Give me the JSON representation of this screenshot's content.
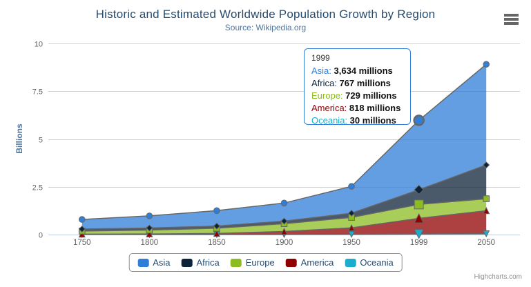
{
  "chart": {
    "title": "Historic and Estimated Worldwide Population Growth by Region",
    "subtitle": "Source: Wikipedia.org",
    "credits": "Highcharts.com"
  },
  "chart_data": {
    "type": "area",
    "stacking": "normal",
    "title": "Historic and Estimated Worldwide Population Growth by Region",
    "subtitle": "Source: Wikipedia.org",
    "categories": [
      "1750",
      "1800",
      "1850",
      "1900",
      "1950",
      "1999",
      "2050"
    ],
    "xlabel": "",
    "ylabel": "Billions",
    "unit": "millions",
    "ylim": [
      0,
      10
    ],
    "yticks": [
      0,
      2.5,
      5,
      7.5,
      10
    ],
    "grid": true,
    "legend_position": "bottom",
    "fill_opacity": 0.75,
    "hover_index": 5,
    "hover_series": "Asia",
    "series": [
      {
        "name": "Asia",
        "color": "#2f7ed8",
        "marker": "circle",
        "values": [
          502,
          635,
          809,
          947,
          1402,
          3634,
          5268
        ]
      },
      {
        "name": "Africa",
        "color": "#0d233a",
        "marker": "diamond",
        "values": [
          106,
          107,
          111,
          133,
          221,
          767,
          1766
        ]
      },
      {
        "name": "Europe",
        "color": "#8bbc21",
        "marker": "square",
        "values": [
          163,
          203,
          276,
          408,
          547,
          729,
          628
        ]
      },
      {
        "name": "America",
        "color": "#910000",
        "marker": "triangle",
        "values": [
          18,
          31,
          54,
          156,
          339,
          818,
          1201
        ]
      },
      {
        "name": "Oceania",
        "color": "#1aadce",
        "marker": "triangle-down",
        "values": [
          2,
          2,
          2,
          6,
          13,
          30,
          46
        ]
      }
    ]
  },
  "tooltip": {
    "header": "1999",
    "rows": [
      {
        "name": "Asia",
        "value": "3,634 millions",
        "color": "#2f7ed8"
      },
      {
        "name": "Africa",
        "value": "767 millions",
        "color": "#0d233a"
      },
      {
        "name": "Europe",
        "value": "729 millions",
        "color": "#8bbc21"
      },
      {
        "name": "America",
        "value": "818 millions",
        "color": "#910000"
      },
      {
        "name": "Oceania",
        "value": "30 millions",
        "color": "#1aadce"
      }
    ]
  },
  "icons": {
    "context_menu": "hamburger-icon"
  },
  "colors": {
    "title": "#274b6d",
    "subtitle": "#4d759e",
    "axis_label": "#606060",
    "axis_title": "#4d759e",
    "grid": "#d0d0d0",
    "axis_line": "#c0d0e0",
    "series_line": "#666666",
    "legend_text": "#274b6d",
    "legend_border": "#909090",
    "tooltip_border": "#2f7ed8",
    "credits": "#909090"
  }
}
